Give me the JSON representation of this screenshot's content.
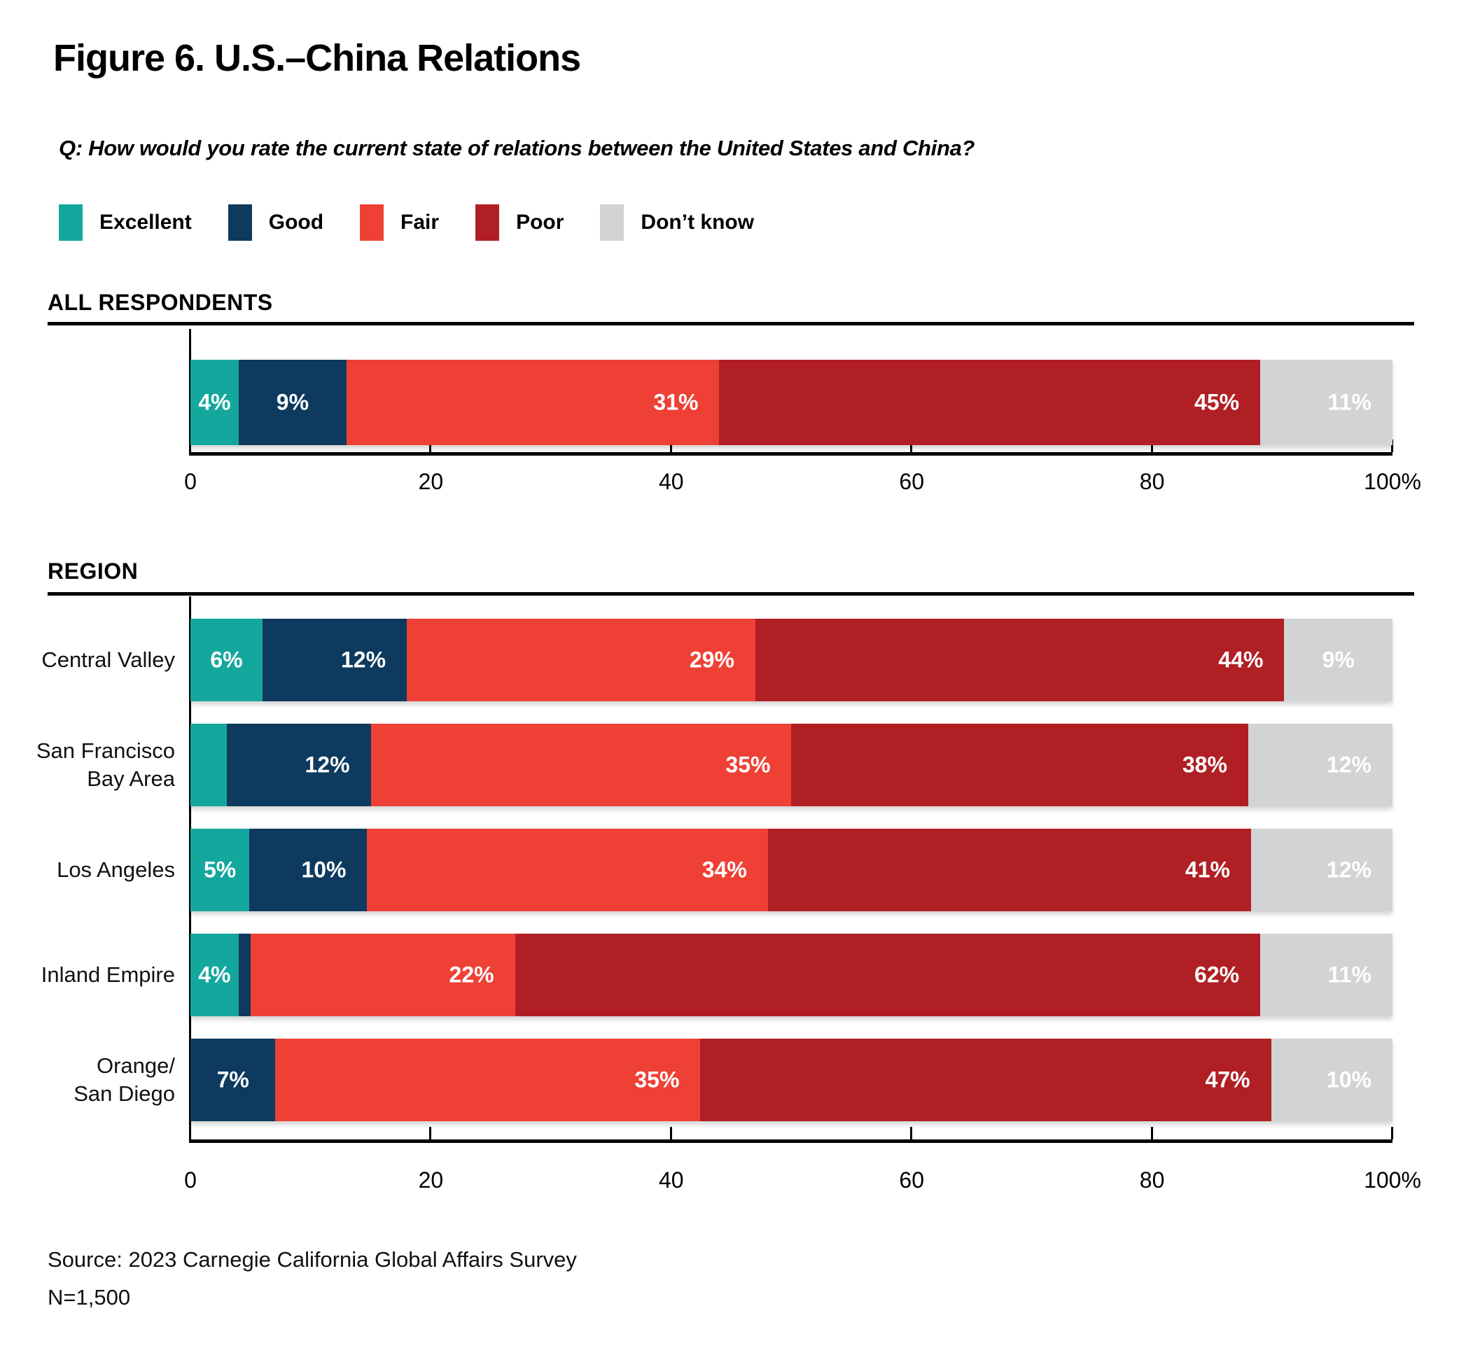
{
  "title": "Figure 6. U.S.–China Relations",
  "question": "Q: How would you rate the current state of relations between the United States and China?",
  "colors": {
    "excellent": "#14A79D",
    "good": "#0D3A5E",
    "fair": "#EF4036",
    "poor": "#B01F24",
    "dont_know": "#D2D3D4",
    "axis": "#000000",
    "bar_label": "#ffffff"
  },
  "legend": {
    "items": [
      {
        "key": "excellent",
        "label": "Excellent"
      },
      {
        "key": "good",
        "label": "Good"
      },
      {
        "key": "fair",
        "label": "Fair"
      },
      {
        "key": "poor",
        "label": "Poor"
      },
      {
        "key": "dont_know",
        "label": "Don’t know"
      }
    ]
  },
  "axis": {
    "min": 0,
    "max": 100,
    "tick_labels": [
      "0",
      "20",
      "40",
      "60",
      "80",
      "100%"
    ]
  },
  "sections": [
    {
      "id": "all",
      "header": "ALL RESPONDENTS",
      "rows": [
        {
          "label_lines": [],
          "segments": [
            {
              "key": "excellent",
              "value": 4,
              "label": "4%"
            },
            {
              "key": "good",
              "value": 9,
              "label": "9%"
            },
            {
              "key": "fair",
              "value": 31,
              "label": "31%"
            },
            {
              "key": "poor",
              "value": 45,
              "label": "45%"
            },
            {
              "key": "dont_know",
              "value": 11,
              "label": "11%"
            }
          ]
        }
      ]
    },
    {
      "id": "region",
      "header": "REGION",
      "rows": [
        {
          "label_lines": [
            "Central Valley"
          ],
          "segments": [
            {
              "key": "excellent",
              "value": 6,
              "label": "6%"
            },
            {
              "key": "good",
              "value": 12,
              "label": "12%"
            },
            {
              "key": "fair",
              "value": 29,
              "label": "29%"
            },
            {
              "key": "poor",
              "value": 44,
              "label": "44%"
            },
            {
              "key": "dont_know",
              "value": 9,
              "label": "9%"
            }
          ]
        },
        {
          "label_lines": [
            "San Francisco",
            "Bay Area"
          ],
          "segments": [
            {
              "key": "excellent",
              "value": 3,
              "label": ""
            },
            {
              "key": "good",
              "value": 12,
              "label": "12%"
            },
            {
              "key": "fair",
              "value": 35,
              "label": "35%"
            },
            {
              "key": "poor",
              "value": 38,
              "label": "38%"
            },
            {
              "key": "dont_know",
              "value": 12,
              "label": "12%"
            }
          ]
        },
        {
          "label_lines": [
            "Los Angeles"
          ],
          "segments": [
            {
              "key": "excellent",
              "value": 5,
              "label": "5%"
            },
            {
              "key": "good",
              "value": 10,
              "label": "10%"
            },
            {
              "key": "fair",
              "value": 34,
              "label": "34%"
            },
            {
              "key": "poor",
              "value": 41,
              "label": "41%"
            },
            {
              "key": "dont_know",
              "value": 12,
              "label": "12%"
            }
          ]
        },
        {
          "label_lines": [
            "Inland Empire"
          ],
          "segments": [
            {
              "key": "excellent",
              "value": 4,
              "label": "4%"
            },
            {
              "key": "good",
              "value": 1,
              "label": ""
            },
            {
              "key": "fair",
              "value": 22,
              "label": "22%"
            },
            {
              "key": "poor",
              "value": 62,
              "label": "62%"
            },
            {
              "key": "dont_know",
              "value": 11,
              "label": "11%"
            }
          ]
        },
        {
          "label_lines": [
            "Orange/",
            "San Diego"
          ],
          "segments": [
            {
              "key": "excellent",
              "value": 0,
              "label": ""
            },
            {
              "key": "good",
              "value": 7,
              "label": "7%"
            },
            {
              "key": "fair",
              "value": 35,
              "label": "35%"
            },
            {
              "key": "poor",
              "value": 47,
              "label": "47%"
            },
            {
              "key": "dont_know",
              "value": 10,
              "label": "10%"
            }
          ]
        }
      ]
    }
  ],
  "source": {
    "line1": "Source: 2023 Carnegie California Global Affairs Survey",
    "line2": "N=1,500"
  },
  "chart_data": [
    {
      "type": "bar",
      "stacked": true,
      "orientation": "horizontal",
      "title": "ALL RESPONDENTS",
      "categories": [
        "All respondents"
      ],
      "series": [
        {
          "name": "Excellent",
          "values": [
            4
          ]
        },
        {
          "name": "Good",
          "values": [
            9
          ]
        },
        {
          "name": "Fair",
          "values": [
            31
          ]
        },
        {
          "name": "Poor",
          "values": [
            45
          ]
        },
        {
          "name": "Don’t know",
          "values": [
            11
          ]
        }
      ],
      "xlabel": "",
      "ylabel": "",
      "xlim": [
        0,
        100
      ],
      "x_ticks": [
        0,
        20,
        40,
        60,
        80,
        100
      ],
      "unit": "%",
      "grid": false,
      "legend_position": "top"
    },
    {
      "type": "bar",
      "stacked": true,
      "orientation": "horizontal",
      "title": "REGION",
      "categories": [
        "Central Valley",
        "San Francisco Bay Area",
        "Los Angeles",
        "Inland Empire",
        "Orange/San Diego"
      ],
      "series": [
        {
          "name": "Excellent",
          "values": [
            6,
            3,
            5,
            4,
            0
          ]
        },
        {
          "name": "Good",
          "values": [
            12,
            12,
            10,
            1,
            7
          ]
        },
        {
          "name": "Fair",
          "values": [
            29,
            35,
            34,
            22,
            35
          ]
        },
        {
          "name": "Poor",
          "values": [
            44,
            38,
            41,
            62,
            47
          ]
        },
        {
          "name": "Don’t know",
          "values": [
            9,
            12,
            12,
            11,
            10
          ]
        }
      ],
      "xlabel": "",
      "ylabel": "",
      "xlim": [
        0,
        100
      ],
      "x_ticks": [
        0,
        20,
        40,
        60,
        80,
        100
      ],
      "unit": "%",
      "grid": false,
      "legend_position": "top"
    }
  ]
}
